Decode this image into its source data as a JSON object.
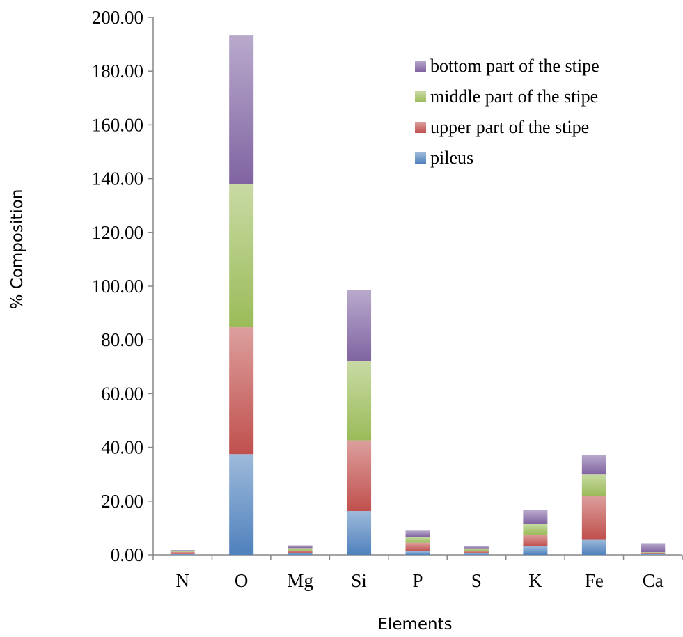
{
  "chart_data": {
    "type": "bar",
    "stacked": true,
    "categories": [
      "N",
      "O",
      "Mg",
      "Si",
      "P",
      "S",
      "K",
      "Fe",
      "Ca"
    ],
    "series": [
      {
        "name": "pileus",
        "color": "#4f81bd",
        "values": [
          0.3,
          37.5,
          0.8,
          16.3,
          1.3,
          0.6,
          3.2,
          5.8,
          0.3
        ]
      },
      {
        "name": "upper part of the stipe",
        "color": "#c0504d",
        "values": [
          0.8,
          47.2,
          0.8,
          26.3,
          3.2,
          0.9,
          4.3,
          16.2,
          0.5
        ]
      },
      {
        "name": "middle part of the stipe",
        "color": "#9bbb59",
        "values": [
          0.2,
          53.3,
          0.9,
          29.5,
          2.2,
          0.9,
          4.1,
          8.0,
          0.2
        ]
      },
      {
        "name": "bottom part of the stipe",
        "color": "#8064a2",
        "values": [
          0.5,
          55.5,
          1.0,
          26.5,
          2.3,
          0.7,
          5.0,
          7.3,
          3.3
        ]
      }
    ],
    "title": "",
    "xlabel": "Elements",
    "ylabel": "% Composition",
    "ylim": [
      0,
      200
    ],
    "yticks": [
      "0.00",
      "20.00",
      "40.00",
      "60.00",
      "80.00",
      "100.00",
      "120.00",
      "140.00",
      "160.00",
      "180.00",
      "200.00"
    ],
    "grid": false,
    "legend_position": "top-right",
    "legend_order": [
      "bottom part of the stipe",
      "middle part of the stipe",
      "upper part of the stipe",
      "pileus"
    ]
  }
}
